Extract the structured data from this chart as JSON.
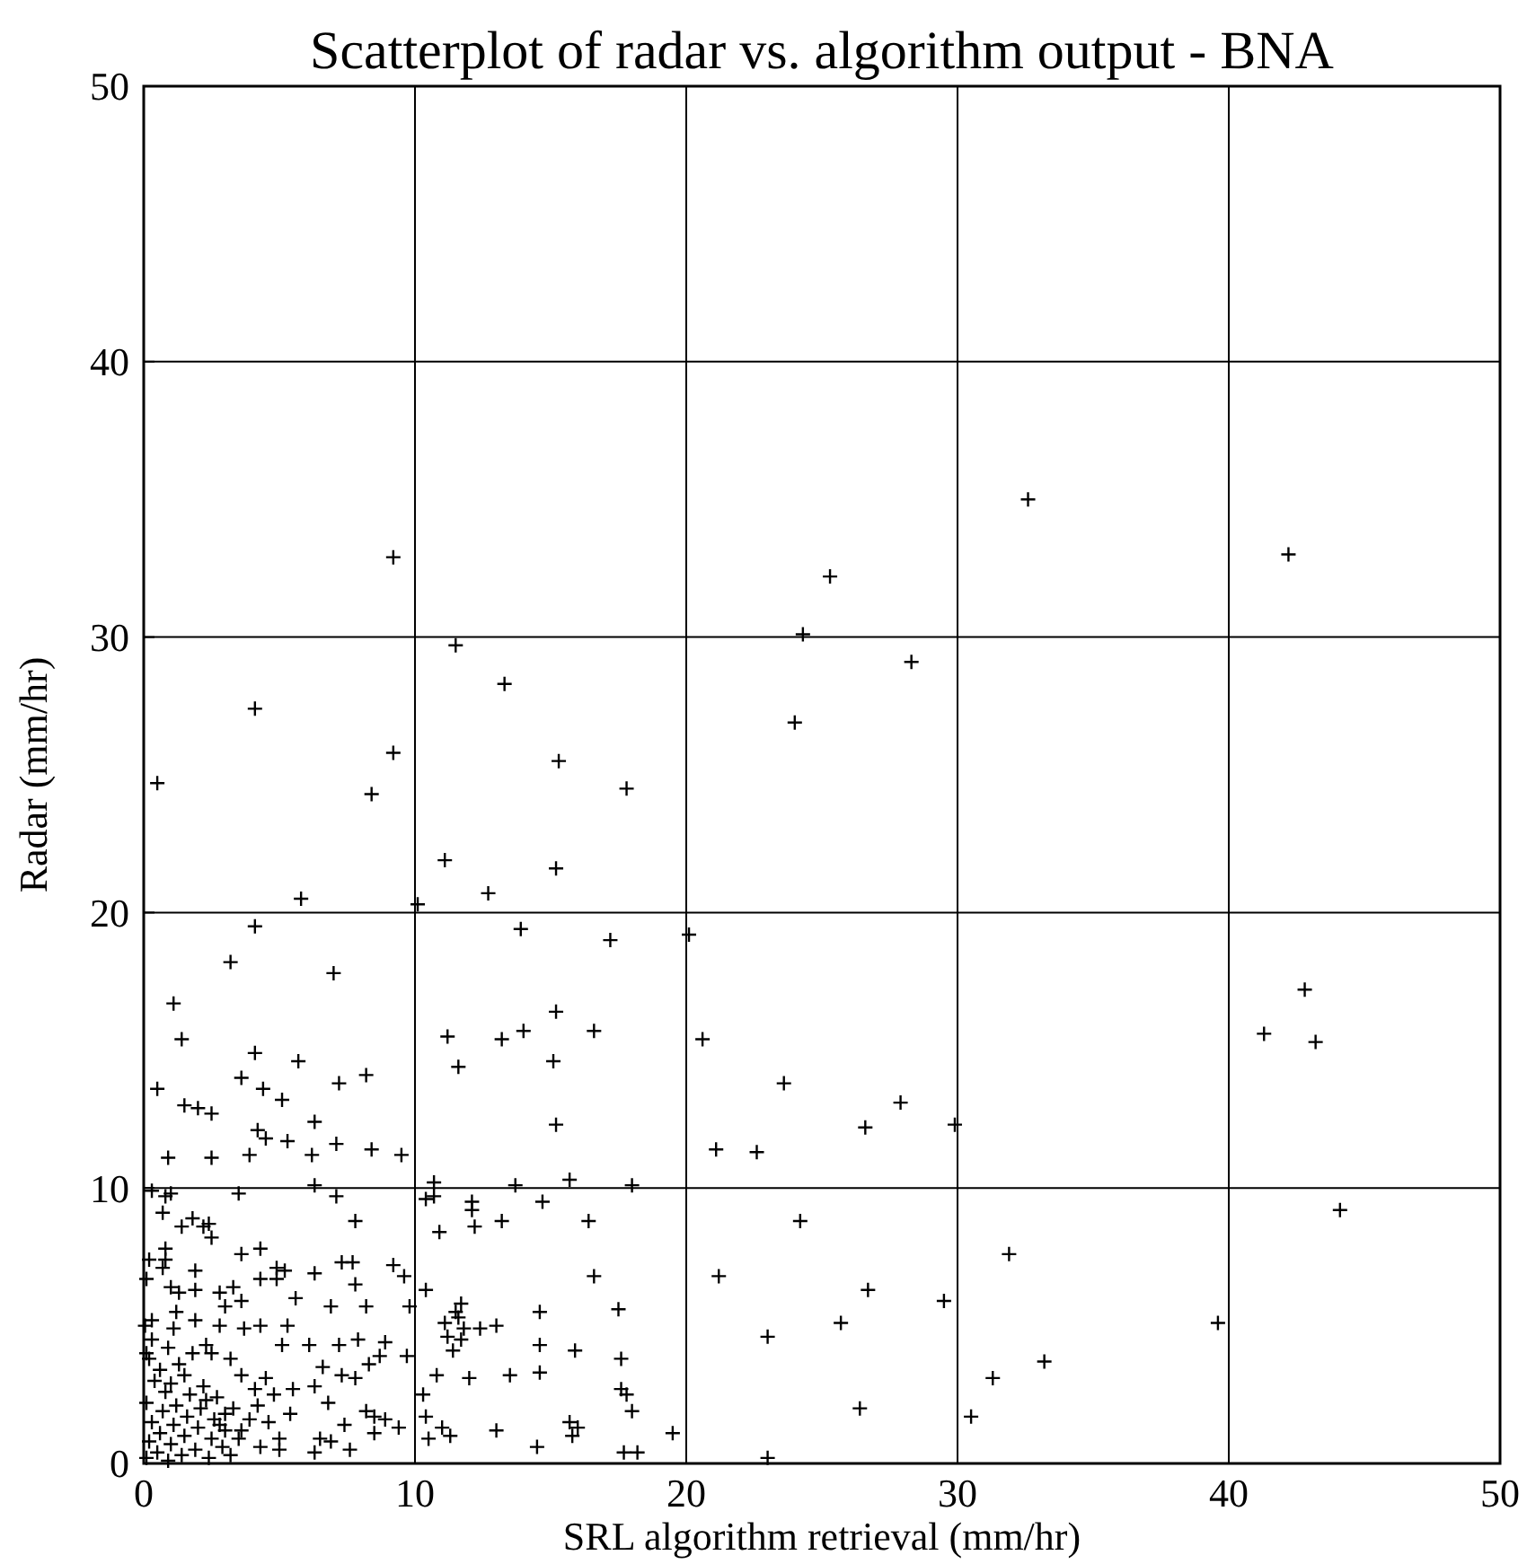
{
  "chart_data": {
    "type": "scatter",
    "title": "Scatterplot of radar vs. algorithm output - BNA",
    "xlabel": "SRL algorithm retrieval (mm/hr)",
    "ylabel": "Radar (mm/hr)",
    "xlim": [
      0,
      50
    ],
    "ylim": [
      0,
      50
    ],
    "xticks": [
      0,
      10,
      20,
      30,
      40,
      50
    ],
    "yticks": [
      0,
      10,
      20,
      30,
      40,
      50
    ],
    "grid": true,
    "marker": "cross",
    "series": [
      {
        "color": "#000000",
        "x": [
          9.2,
          32.6,
          42.2,
          25.3,
          24.3,
          28.3,
          11.5,
          4.1,
          0.5,
          9.2,
          8.4,
          13.3,
          15.3,
          17.8,
          24.0,
          11.1,
          10.1,
          12.7,
          15.2,
          5.8,
          4.1,
          3.2,
          7.0,
          1.1,
          1.4,
          20.1,
          17.2,
          13.9,
          11.2,
          11.6,
          14.0,
          13.2,
          15.2,
          15.1,
          16.6,
          15.2,
          15.7,
          20.6,
          21.1,
          22.6,
          23.6,
          26.6,
          27.9,
          29.9,
          41.3,
          42.8,
          43.2,
          44.1,
          24.2,
          21.2,
          23.0,
          26.7,
          25.7,
          29.5,
          31.9,
          33.2,
          31.3,
          30.5,
          26.4,
          23.0,
          39.6,
          0.5,
          0.9,
          1.5,
          2.0,
          2.5,
          3.6,
          4.1,
          4.4,
          4.2,
          5.1,
          5.7,
          6.3,
          7.2,
          8.2,
          7.1,
          8.4,
          9.5,
          2.5,
          3.9,
          4.5,
          5.3,
          6.2,
          10.7,
          10.4,
          10.7,
          12.1,
          12.1,
          10.9,
          12.2,
          13.2,
          14.7,
          16.4,
          13.7,
          18.0,
          16.6,
          10.4,
          11.5,
          11.7,
          11.6,
          11.1,
          11.8,
          11.2,
          11.7,
          11.4,
          12.4,
          13.0,
          14.6,
          17.5,
          14.6,
          15.9,
          17.6,
          10.8,
          12.0,
          13.5,
          14.6,
          17.6,
          17.8,
          18.0,
          10.3,
          10.4,
          11.0,
          11.3,
          10.5,
          13.0,
          15.7,
          16.0,
          15.8,
          19.5,
          14.5,
          17.7,
          18.2,
          0.3,
          0.8,
          1.0,
          3.5,
          7.1,
          6.3,
          0.7,
          1.8,
          1.4,
          2.2,
          2.4,
          2.5,
          7.8,
          0.8,
          0.2,
          0.8,
          3.6,
          4.3,
          0.7,
          1.9,
          0.1,
          1.0,
          1.3,
          1.9,
          2.8,
          3.3,
          4.3,
          4.9,
          5.2,
          4.9,
          6.3,
          7.3,
          7.7,
          9.2,
          9.6,
          7.8,
          3.0,
          3.6,
          5.6,
          6.9,
          8.2,
          9.8,
          1.2,
          0.3,
          1.9,
          1.1,
          2.8,
          3.7,
          4.3,
          5.3,
          5.1,
          6.1,
          7.2,
          7.9,
          8.9,
          9.7,
          8.7,
          6.6,
          7.3,
          7.8,
          8.3,
          4.5,
          3.6,
          3.2,
          2.5,
          2.3,
          6.3,
          5.5,
          4.8,
          4.1,
          6.8,
          8.2,
          8.5,
          8.9,
          9.4,
          7.4,
          6.5,
          6.9,
          8.5,
          7.6,
          6.3,
          5.0,
          4.3,
          3.6,
          3.0,
          2.3,
          2.8,
          0.1,
          0.2,
          0.3,
          0.1,
          0.4,
          0.2,
          0.5,
          0.6,
          0.7,
          0.8,
          0.6,
          0.9,
          1.0,
          1.1,
          1.2,
          1.0,
          1.3,
          1.4,
          1.5,
          1.6,
          1.7,
          1.5,
          1.9,
          2.0,
          2.1,
          2.2,
          2.4,
          2.5,
          2.6,
          2.7,
          2.9,
          3.0,
          3.2,
          3.3,
          0.3,
          0.9,
          1.8,
          3.5,
          3.9,
          4.2,
          4.6,
          5.0,
          5.4,
          0.05,
          0.1
        ],
        "values": [
          32.9,
          35.0,
          33.0,
          32.2,
          30.1,
          29.1,
          29.7,
          27.4,
          24.7,
          25.8,
          24.3,
          28.3,
          25.5,
          24.5,
          26.9,
          21.9,
          20.3,
          20.7,
          21.6,
          20.5,
          19.5,
          18.2,
          17.8,
          16.7,
          15.4,
          19.2,
          19.0,
          19.4,
          15.5,
          14.4,
          15.7,
          15.4,
          16.4,
          14.6,
          15.7,
          12.3,
          10.3,
          15.4,
          11.4,
          11.3,
          13.8,
          12.2,
          13.1,
          12.3,
          15.6,
          17.2,
          15.3,
          9.2,
          8.8,
          6.8,
          4.6,
          6.3,
          5.1,
          5.9,
          7.6,
          3.7,
          3.1,
          1.7,
          2.0,
          0.2,
          5.1,
          13.6,
          11.1,
          13.0,
          12.9,
          12.7,
          14.0,
          14.9,
          13.6,
          12.1,
          13.2,
          14.6,
          12.4,
          13.8,
          14.1,
          11.6,
          11.4,
          11.2,
          11.1,
          11.2,
          11.8,
          11.7,
          11.2,
          10.2,
          9.6,
          9.7,
          9.5,
          9.2,
          8.4,
          8.6,
          8.8,
          9.5,
          8.8,
          10.1,
          10.1,
          6.8,
          6.3,
          5.5,
          5.8,
          5.3,
          5.1,
          4.9,
          4.6,
          4.5,
          4.1,
          4.9,
          5.0,
          5.5,
          5.6,
          4.3,
          4.1,
          3.8,
          3.2,
          3.1,
          3.2,
          3.3,
          2.7,
          2.5,
          1.9,
          2.5,
          1.7,
          1.3,
          1.0,
          0.9,
          1.2,
          1.5,
          1.3,
          1.0,
          1.1,
          0.6,
          0.4,
          0.4,
          9.9,
          9.7,
          9.8,
          9.8,
          9.7,
          10.1,
          9.1,
          8.9,
          8.6,
          8.6,
          8.7,
          8.2,
          8.8,
          7.8,
          7.4,
          7.4,
          7.6,
          7.8,
          7.1,
          7.0,
          6.7,
          6.4,
          6.2,
          6.3,
          6.2,
          6.4,
          6.7,
          7.1,
          7.0,
          6.7,
          6.9,
          7.3,
          7.3,
          7.2,
          6.8,
          6.5,
          5.7,
          5.9,
          6.0,
          5.7,
          5.7,
          5.7,
          5.5,
          5.2,
          5.2,
          4.9,
          5.0,
          4.9,
          5.0,
          5.0,
          4.3,
          4.3,
          4.3,
          4.5,
          4.4,
          3.9,
          3.9,
          3.5,
          3.2,
          3.1,
          3.6,
          3.1,
          3.2,
          3.8,
          4.0,
          4.3,
          2.8,
          2.7,
          2.5,
          2.7,
          2.2,
          1.9,
          1.7,
          1.6,
          1.3,
          1.4,
          0.9,
          0.8,
          1.1,
          0.5,
          0.4,
          0.5,
          0.6,
          1.2,
          1.8,
          2.3,
          1.4,
          0.2,
          0.8,
          1.5,
          2.2,
          3.0,
          3.8,
          0.4,
          1.1,
          1.9,
          2.6,
          3.4,
          0.1,
          0.7,
          1.4,
          2.1,
          2.9,
          3.6,
          0.3,
          1.0,
          1.7,
          2.5,
          3.2,
          0.5,
          1.3,
          2.0,
          2.8,
          0.2,
          0.9,
          1.6,
          2.4,
          0.6,
          1.2,
          0.3,
          2.0,
          4.5,
          4.2,
          4.0,
          0.9,
          1.6,
          2.1,
          1.5,
          0.9,
          1.8,
          5.0,
          4.0
        ]
      }
    ]
  }
}
